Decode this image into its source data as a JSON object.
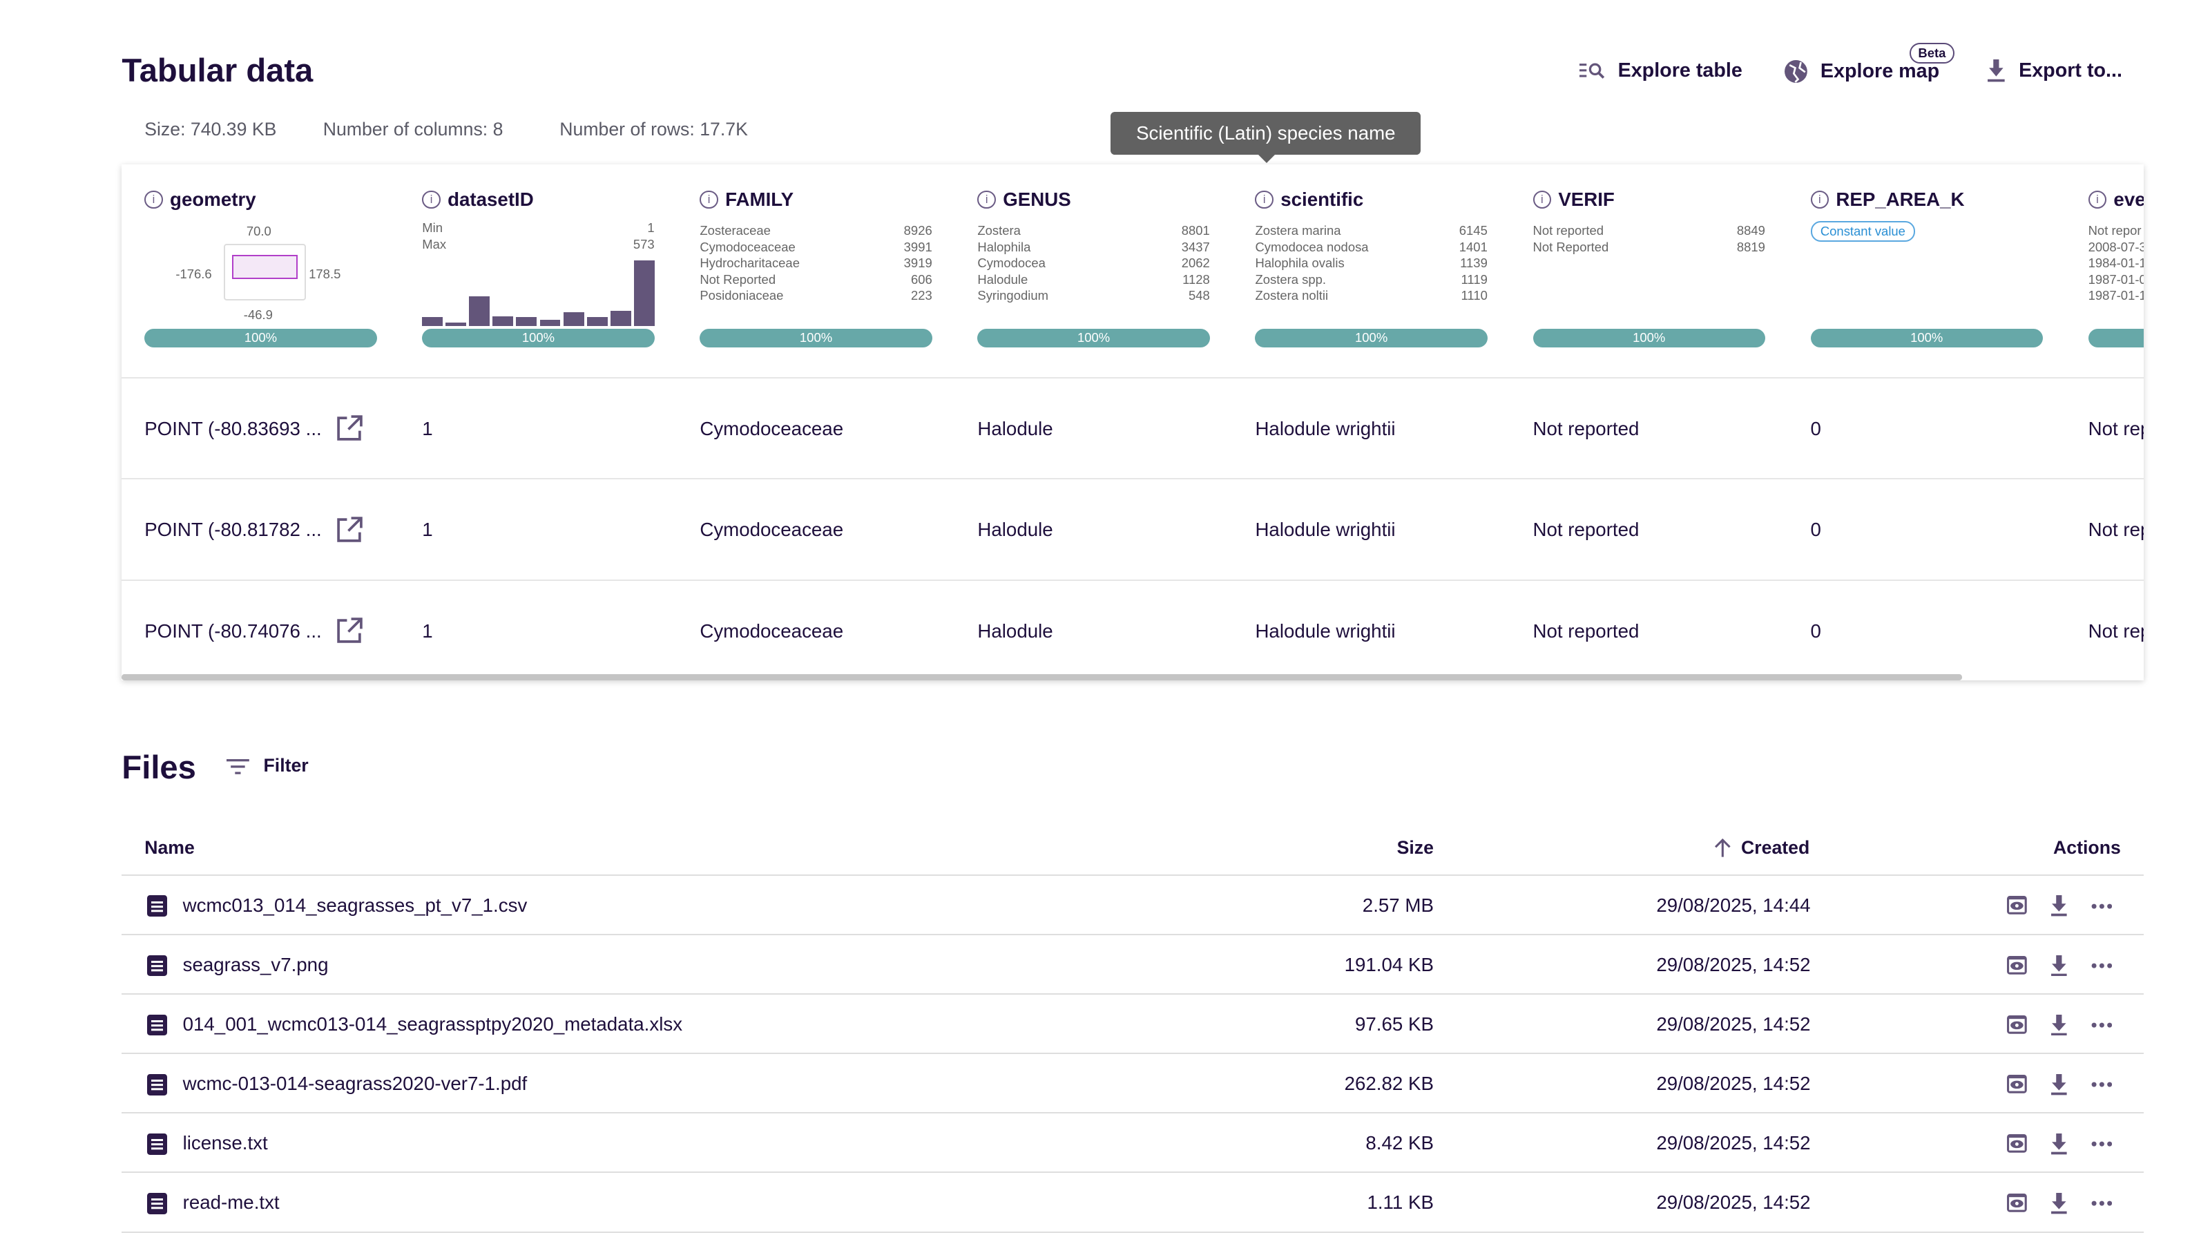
{
  "header": {
    "title": "Tabular data",
    "size": "Size: 740.39 KB",
    "columns": "Number of columns: 8",
    "rows": "Number of rows: 17.7K",
    "actions": {
      "explore_table": "Explore table",
      "explore_map": "Explore map",
      "beta": "Beta",
      "export": "Export to..."
    }
  },
  "tooltip": "Scientific (Latin) species name",
  "colors": {
    "accent": "#67a8a8",
    "text": "#1e0f3c",
    "icon": "#63557a",
    "histogram": "#63557a"
  },
  "columns": [
    {
      "name": "geometry",
      "bbox_values": {
        "north": "70.0",
        "west": "-176.6",
        "east": "178.5",
        "south": "-46.9"
      },
      "completeness": "100%"
    },
    {
      "name": "datasetID",
      "min_label": "Min",
      "min": "1",
      "max_label": "Max",
      "max": "573",
      "histogram": [
        34,
        12,
        112,
        36,
        34,
        22,
        52,
        34,
        56,
        246
      ],
      "completeness": "100%"
    },
    {
      "name": "FAMILY",
      "freq": [
        [
          "Zosteraceae",
          "8926"
        ],
        [
          "Cymodoceaceae",
          "3991"
        ],
        [
          "Hydrocharitaceae",
          "3919"
        ],
        [
          "Not Reported",
          "606"
        ],
        [
          "Posidoniaceae",
          "223"
        ]
      ],
      "completeness": "100%"
    },
    {
      "name": "GENUS",
      "freq": [
        [
          "Zostera",
          "8801"
        ],
        [
          "Halophila",
          "3437"
        ],
        [
          "Cymodocea",
          "2062"
        ],
        [
          "Halodule",
          "1128"
        ],
        [
          "Syringodium",
          "548"
        ]
      ],
      "completeness": "100%"
    },
    {
      "name": "scientific",
      "freq": [
        [
          "Zostera marina",
          "6145"
        ],
        [
          "Cymodocea nodosa",
          "1401"
        ],
        [
          "Halophila ovalis",
          "1139"
        ],
        [
          "Zostera spp.",
          "1119"
        ],
        [
          "Zostera noltii",
          "1110"
        ]
      ],
      "completeness": "100%"
    },
    {
      "name": "VERIF",
      "freq": [
        [
          "Not reported",
          "8849"
        ],
        [
          "Not Reported",
          "8819"
        ]
      ],
      "completeness": "100%"
    },
    {
      "name": "REP_AREA_K",
      "badge": "Constant value",
      "completeness": "100%"
    },
    {
      "name": "eve",
      "freq": [
        [
          "Not repor",
          ""
        ],
        [
          "2008-07-3",
          ""
        ],
        [
          "1984-01-1",
          ""
        ],
        [
          "1987-01-0",
          ""
        ],
        [
          "1987-01-1",
          ""
        ]
      ],
      "completeness": ""
    }
  ],
  "rows": [
    [
      "POINT (-80.83693 ...",
      "1",
      "Cymodoceaceae",
      "Halodule",
      "Halodule wrightii",
      "Not reported",
      "0",
      "Not rep"
    ],
    [
      "POINT (-80.81782 ...",
      "1",
      "Cymodoceaceae",
      "Halodule",
      "Halodule wrightii",
      "Not reported",
      "0",
      "Not rep"
    ],
    [
      "POINT (-80.74076 ...",
      "1",
      "Cymodoceaceae",
      "Halodule",
      "Halodule wrightii",
      "Not reported",
      "0",
      "Not rep"
    ]
  ],
  "files": {
    "title": "Files",
    "filter": "Filter",
    "headers": {
      "name": "Name",
      "size": "Size",
      "created": "Created",
      "actions": "Actions"
    },
    "items": [
      {
        "name": "wcmc013_014_seagrasses_pt_v7_1.csv",
        "size": "2.57 MB",
        "created": "29/08/2025, 14:44"
      },
      {
        "name": "seagrass_v7.png",
        "size": "191.04 KB",
        "created": "29/08/2025, 14:52"
      },
      {
        "name": "014_001_wcmc013-014_seagrassptpy2020_metadata.xlsx",
        "size": "97.65 KB",
        "created": "29/08/2025, 14:52"
      },
      {
        "name": "wcmc-013-014-seagrass2020-ver7-1.pdf",
        "size": "262.82 KB",
        "created": "29/08/2025, 14:52"
      },
      {
        "name": "license.txt",
        "size": "8.42 KB",
        "created": "29/08/2025, 14:52"
      },
      {
        "name": "read-me.txt",
        "size": "1.11 KB",
        "created": "29/08/2025, 14:52"
      }
    ]
  }
}
